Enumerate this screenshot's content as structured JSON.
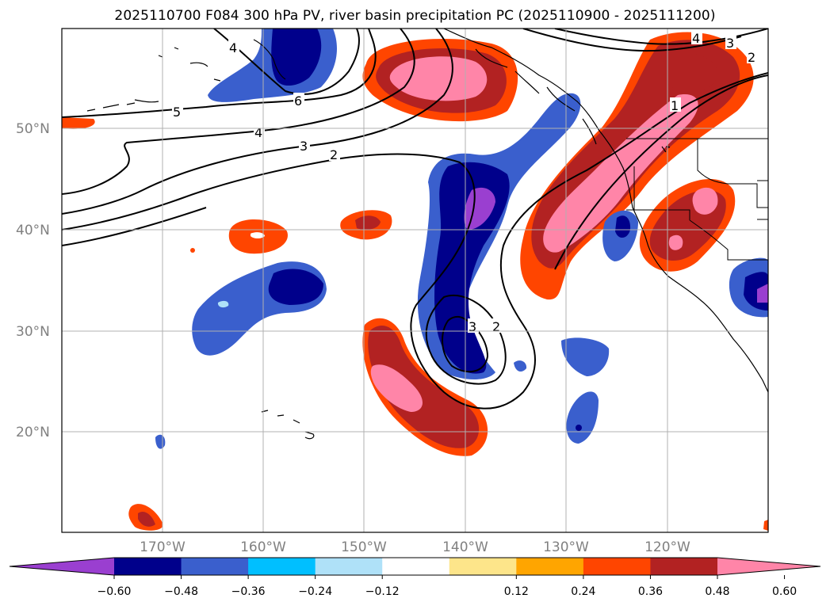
{
  "title": "2025110700 F084 300 hPa PV, river basin precipitation PC (2025110900 - 2025111200)",
  "map": {
    "lat_labels": [
      "50°N",
      "40°N",
      "30°N",
      "20°N"
    ],
    "lon_labels": [
      "170°W",
      "160°W",
      "150°W",
      "140°W",
      "130°W",
      "120°W"
    ],
    "pv_contour_labels": [
      "4",
      "6",
      "5",
      "4",
      "3",
      "2",
      "3",
      "2",
      "1",
      "2",
      "3",
      "4"
    ]
  },
  "colorbar": {
    "ticks": [
      "−0.60",
      "−0.48",
      "−0.36",
      "−0.24",
      "−0.12",
      "0.12",
      "0.24",
      "0.36",
      "0.48",
      "0.60"
    ],
    "colors": {
      "neg_extend": "#9a3fd0",
      "neg_060": "#00008b",
      "neg_048": "#3a5fcd",
      "neg_036": "#00bfff",
      "neg_024": "#afe1f8",
      "neutral": "#ffffff",
      "pos_012": "#fde58a",
      "pos_024": "#ffa500",
      "pos_036": "#ff4500",
      "pos_048": "#b22222",
      "pos_extend": "#ff85a8"
    }
  }
}
